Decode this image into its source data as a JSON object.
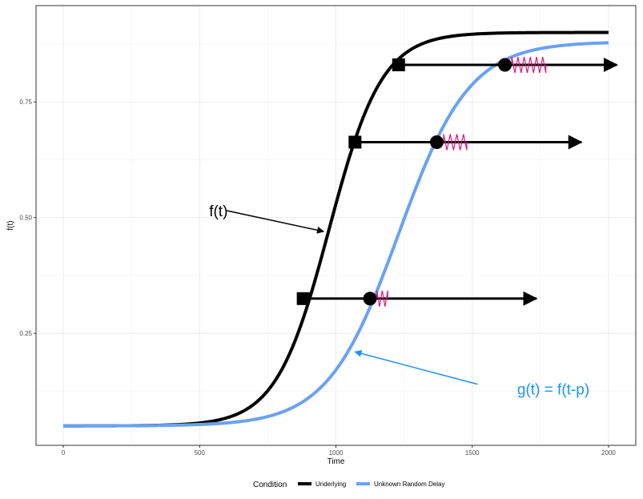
{
  "chart_data": {
    "type": "line",
    "xlabel": "Time",
    "ylabel": "f(t)",
    "xlim": [
      -100,
      2100
    ],
    "ylim": [
      0.008,
      0.958
    ],
    "xticks": [
      0,
      500,
      1000,
      1500,
      2000
    ],
    "yticks": [
      0.25,
      0.5,
      0.75
    ],
    "xtick_labels": [
      "0",
      "500",
      "1000",
      "1500",
      "2000"
    ],
    "ytick_labels": [
      "0.25",
      "0.50",
      "0.75"
    ],
    "grid": true,
    "legend": {
      "title": "Condition",
      "position": "bottom"
    },
    "series": [
      {
        "name": "Underlying",
        "color": "#000000",
        "shift": 0,
        "lower": 0.05,
        "upper": 0.9,
        "midpoint": 975,
        "scale": 97
      },
      {
        "name": "Unknown Random Delay",
        "color": "#6aa1f2",
        "shift": 0,
        "lower": 0.05,
        "upper": 0.88,
        "midpoint": 1230,
        "scale": 130
      }
    ],
    "sample_range": [
      0,
      2000
    ],
    "markers": [
      {
        "square": [
          880,
          0.325
        ],
        "circle": [
          1125,
          0.325
        ],
        "spring": [
          1150,
          1190
        ],
        "arrow_end": [
          1735,
          0.325
        ]
      },
      {
        "square": [
          1070,
          0.663
        ],
        "circle": [
          1370,
          0.663
        ],
        "spring": [
          1395,
          1480
        ],
        "arrow_end": [
          1900,
          0.663
        ]
      },
      {
        "square": [
          1230,
          0.83
        ],
        "circle": [
          1620,
          0.83
        ],
        "spring": [
          1645,
          1770
        ],
        "arrow_end": [
          2030,
          0.83
        ]
      }
    ],
    "annotations": [
      {
        "text": "f(t)",
        "color": "#000000",
        "text_at": [
          535,
          0.515
        ],
        "arrow_from": [
          600,
          0.515
        ],
        "arrow_to": [
          955,
          0.47
        ]
      },
      {
        "text": "g(t) = f(t-p)",
        "color": "#1e90ff",
        "text_at": [
          1665,
          0.13
        ],
        "arrow_from": [
          1520,
          0.14
        ],
        "arrow_to": [
          1070,
          0.21
        ]
      }
    ],
    "spring_color": "#e0147e"
  }
}
